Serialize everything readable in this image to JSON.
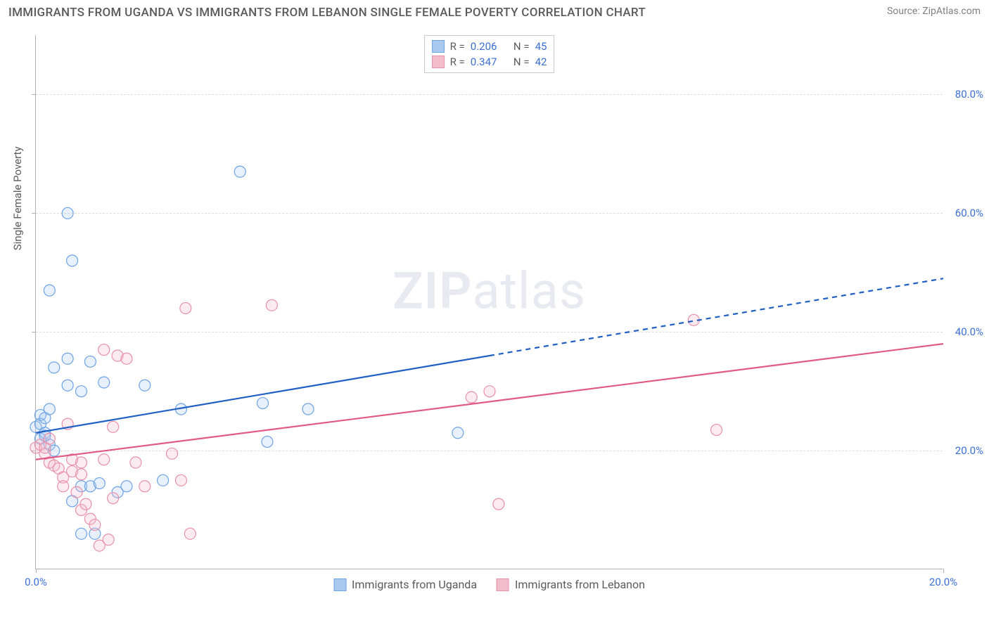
{
  "title": "IMMIGRANTS FROM UGANDA VS IMMIGRANTS FROM LEBANON SINGLE FEMALE POVERTY CORRELATION CHART",
  "source_prefix": "Source: ",
  "source_name": "ZipAtlas.com",
  "y_axis_title": "Single Female Poverty",
  "watermark_a": "ZIP",
  "watermark_b": "atlas",
  "chart": {
    "type": "scatter",
    "background_color": "#ffffff",
    "grid_color": "#dcdcdc",
    "axis_color": "#b0b0b0",
    "xlim": [
      0,
      20
    ],
    "ylim": [
      0,
      90
    ],
    "x_ticks": [
      0,
      20
    ],
    "x_tick_labels": [
      "0.0%",
      "20.0%"
    ],
    "y_ticks": [
      20,
      40,
      60,
      80
    ],
    "y_tick_labels": [
      "20.0%",
      "40.0%",
      "60.0%",
      "80.0%"
    ],
    "marker_radius": 8,
    "marker_stroke_width": 1.2,
    "marker_fill_opacity": 0.28,
    "line_width": 2.2,
    "title_fontsize": 17,
    "label_fontsize": 15,
    "tick_fontsize": 15,
    "tick_color": "#3b6fd6",
    "series": [
      {
        "label": "Immigrants from Uganda",
        "color_stroke": "#6da3e8",
        "color_fill": "#a9c9f0",
        "line_color": "#1f5fc4",
        "r_value": "0.206",
        "n_value": "45",
        "regression": {
          "x1": 0,
          "y1": 23,
          "x2_solid": 10,
          "y2_solid": 36,
          "x2": 20,
          "y2": 49
        },
        "points": [
          [
            0.0,
            24
          ],
          [
            0.1,
            22
          ],
          [
            0.1,
            26
          ],
          [
            0.1,
            24.5
          ],
          [
            0.2,
            23
          ],
          [
            0.2,
            25.5
          ],
          [
            0.2,
            22.5
          ],
          [
            0.3,
            21
          ],
          [
            0.3,
            27
          ],
          [
            0.3,
            47
          ],
          [
            0.4,
            34
          ],
          [
            0.4,
            20
          ],
          [
            0.7,
            35.5
          ],
          [
            0.7,
            31
          ],
          [
            0.7,
            60
          ],
          [
            0.8,
            11.5
          ],
          [
            0.8,
            52
          ],
          [
            1.0,
            14
          ],
          [
            1.0,
            30
          ],
          [
            1.0,
            6
          ],
          [
            1.2,
            14
          ],
          [
            1.2,
            35
          ],
          [
            1.3,
            6
          ],
          [
            1.4,
            14.5
          ],
          [
            1.5,
            31.5
          ],
          [
            1.8,
            13
          ],
          [
            2.0,
            14
          ],
          [
            2.4,
            31
          ],
          [
            2.8,
            15
          ],
          [
            3.2,
            27
          ],
          [
            4.5,
            67
          ],
          [
            5.0,
            28
          ],
          [
            5.1,
            21.5
          ],
          [
            6.0,
            27
          ],
          [
            9.3,
            23
          ]
        ]
      },
      {
        "label": "Immigrants from Lebanon",
        "color_stroke": "#e890a8",
        "color_fill": "#f3bccb",
        "line_color": "#e15a83",
        "r_value": "0.347",
        "n_value": "42",
        "regression": {
          "x1": 0,
          "y1": 18.5,
          "x2_solid": 20,
          "y2_solid": 38,
          "x2": 20,
          "y2": 38
        },
        "points": [
          [
            0.0,
            20.5
          ],
          [
            0.1,
            21
          ],
          [
            0.2,
            19.5
          ],
          [
            0.2,
            20.5
          ],
          [
            0.3,
            18
          ],
          [
            0.3,
            22
          ],
          [
            0.4,
            17.5
          ],
          [
            0.5,
            17
          ],
          [
            0.6,
            15.5
          ],
          [
            0.6,
            14
          ],
          [
            0.7,
            24.5
          ],
          [
            0.8,
            16.5
          ],
          [
            0.8,
            18.5
          ],
          [
            0.9,
            13
          ],
          [
            1.0,
            18
          ],
          [
            1.0,
            10
          ],
          [
            1.0,
            16
          ],
          [
            1.1,
            11
          ],
          [
            1.2,
            8.5
          ],
          [
            1.3,
            7.5
          ],
          [
            1.4,
            4
          ],
          [
            1.5,
            37
          ],
          [
            1.5,
            18.5
          ],
          [
            1.6,
            5
          ],
          [
            1.7,
            12
          ],
          [
            1.7,
            24
          ],
          [
            1.8,
            36
          ],
          [
            2.0,
            35.5
          ],
          [
            2.2,
            18
          ],
          [
            2.4,
            14
          ],
          [
            3.0,
            19.5
          ],
          [
            3.2,
            15
          ],
          [
            3.4,
            6
          ],
          [
            3.3,
            44
          ],
          [
            5.2,
            44.5
          ],
          [
            9.6,
            29
          ],
          [
            10.0,
            30
          ],
          [
            10.2,
            11
          ],
          [
            14.5,
            42
          ],
          [
            15.0,
            23.5
          ]
        ]
      }
    ],
    "legend_r_prefix": "R = ",
    "legend_n_prefix": "N = "
  }
}
